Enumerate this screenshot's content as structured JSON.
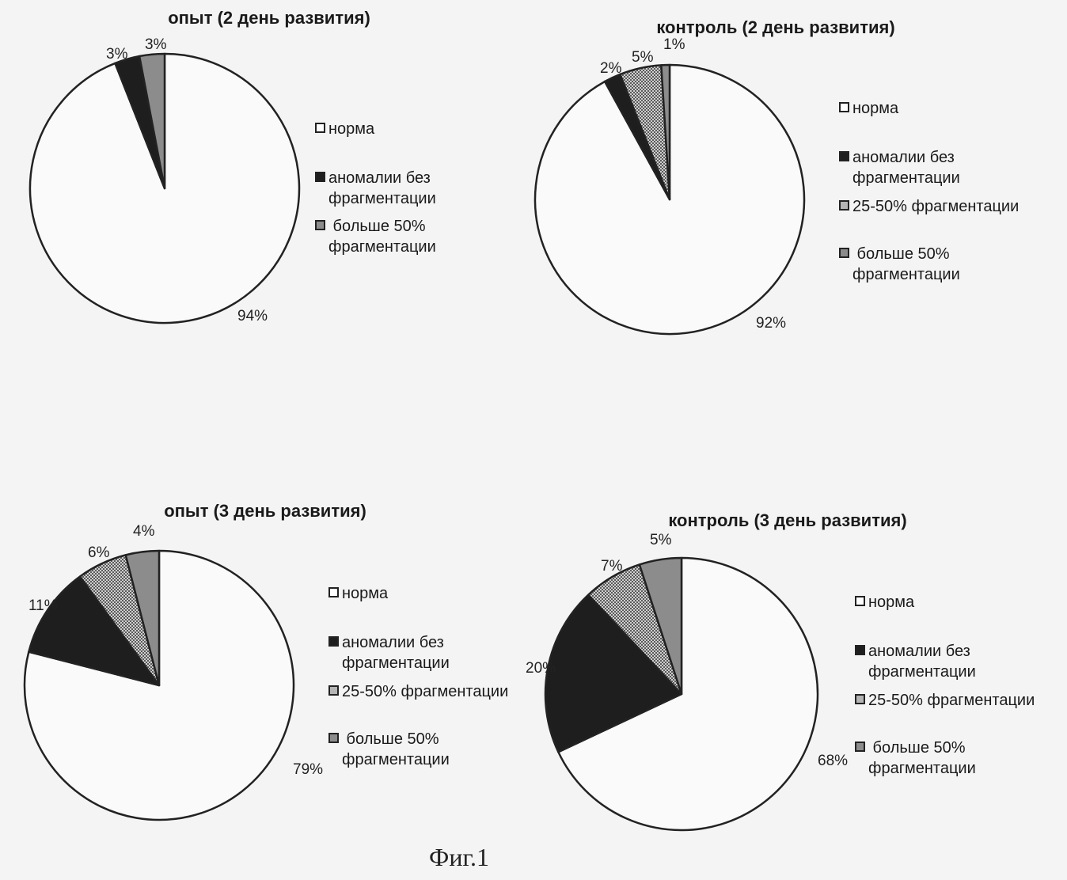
{
  "caption": "Фиг.1",
  "chart_data": [
    {
      "type": "pie",
      "title": "опыт (2 день развития)",
      "slices": [
        {
          "name": "норма",
          "value": 94,
          "label": "94%",
          "color": "#fafafa"
        },
        {
          "name": "аномалии без фрагментации",
          "value": 3,
          "label": "3%",
          "color": "#1e1e1e"
        },
        {
          "name": "больше 50% фрагментации",
          "value": 3,
          "label": "3%",
          "color": "#8c8c8c"
        }
      ],
      "legend": [
        {
          "label": "норма",
          "color": "#ffffff"
        },
        {
          "label": "аномалии без\nфрагментации",
          "color": "#1e1e1e"
        },
        {
          "label": " больше 50%\nфрагментации",
          "color": "#8c8c8c"
        }
      ],
      "legend_position": "right"
    },
    {
      "type": "pie",
      "title": "контроль (2 день развития)",
      "slices": [
        {
          "name": "норма",
          "value": 92,
          "label": "92%",
          "color": "#fafafa"
        },
        {
          "name": "аномалии без фрагментации",
          "value": 2,
          "label": "2%",
          "color": "#1e1e1e"
        },
        {
          "name": "25-50% фрагментации",
          "value": 5,
          "label": "5%",
          "color": "#b4b4b4"
        },
        {
          "name": "больше 50% фрагментации",
          "value": 1,
          "label": "1%",
          "color": "#8c8c8c"
        }
      ],
      "legend": [
        {
          "label": "норма",
          "color": "#ffffff"
        },
        {
          "label": "аномалии без\nфрагментации",
          "color": "#1e1e1e"
        },
        {
          "label": "25-50% фрагментации",
          "color": "#b4b4b4"
        },
        {
          "label": " больше 50%\nфрагментации",
          "color": "#8c8c8c"
        }
      ],
      "legend_position": "right"
    },
    {
      "type": "pie",
      "title": "опыт (3 день развития)",
      "slices": [
        {
          "name": "норма",
          "value": 79,
          "label": "79%",
          "color": "#fafafa"
        },
        {
          "name": "аномалии без фрагментации",
          "value": 11,
          "label": "11%",
          "color": "#1e1e1e"
        },
        {
          "name": "25-50% фрагментации",
          "value": 6,
          "label": "6%",
          "color": "#b4b4b4"
        },
        {
          "name": "больше 50% фрагментации",
          "value": 4,
          "label": "4%",
          "color": "#8c8c8c"
        }
      ],
      "legend": [
        {
          "label": "норма",
          "color": "#ffffff"
        },
        {
          "label": "аномалии без\nфрагментации",
          "color": "#1e1e1e"
        },
        {
          "label": "25-50% фрагментации",
          "color": "#b4b4b4"
        },
        {
          "label": " больше 50%\nфрагментации",
          "color": "#8c8c8c"
        }
      ],
      "legend_position": "right"
    },
    {
      "type": "pie",
      "title": "контроль (3 день развития)",
      "slices": [
        {
          "name": "норма",
          "value": 68,
          "label": "68%",
          "color": "#fafafa"
        },
        {
          "name": "аномалии без фрагментации",
          "value": 20,
          "label": "20%",
          "color": "#1e1e1e"
        },
        {
          "name": "25-50% фрагментации",
          "value": 7,
          "label": "7%",
          "color": "#b4b4b4"
        },
        {
          "name": "больше 50% фрагментации",
          "value": 5,
          "label": "5%",
          "color": "#8c8c8c"
        }
      ],
      "legend": [
        {
          "label": "норма",
          "color": "#ffffff"
        },
        {
          "label": "аномалии без\nфрагментации",
          "color": "#1e1e1e"
        },
        {
          "label": "25-50% фрагментации",
          "color": "#b4b4b4"
        },
        {
          "label": " больше 50%\nфрагментации",
          "color": "#8c8c8c"
        }
      ],
      "legend_position": "right"
    }
  ]
}
